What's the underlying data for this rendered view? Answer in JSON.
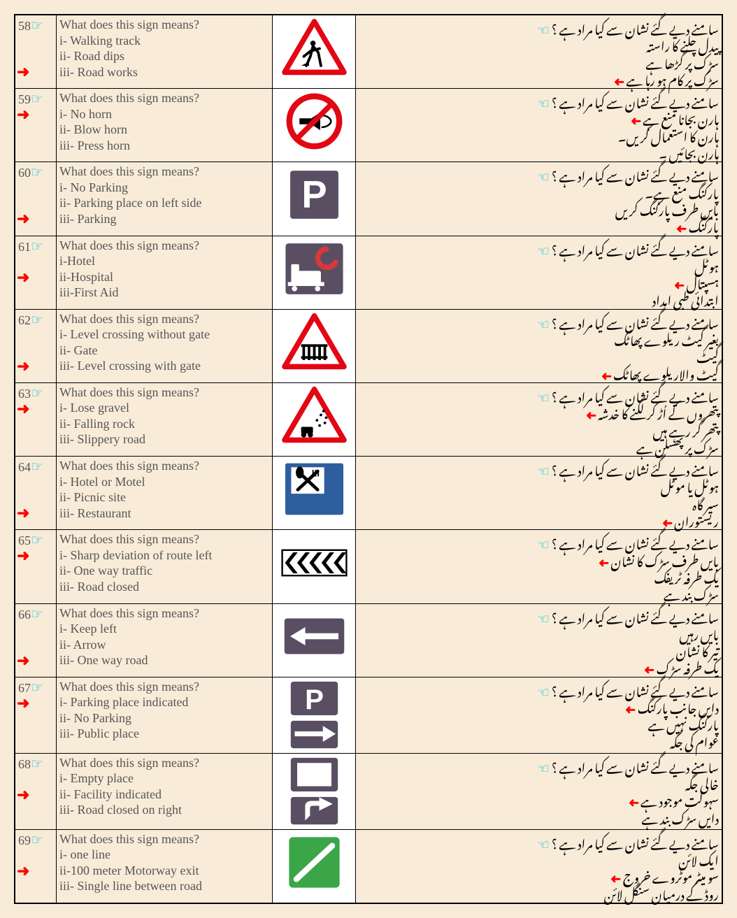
{
  "colors": {
    "bg": "#f8ecd9",
    "border": "#000000",
    "text_eng": "#555555",
    "hand": "#00b8d4",
    "arrow": "#ff0000",
    "sign_red": "#e30613",
    "sign_blue": "#2e5e9e",
    "sign_purple": "#5a4e63",
    "sign_green": "#3aa648",
    "sign_white": "#ffffff",
    "sign_black": "#1a1a1a"
  },
  "font_sizes": {
    "body": 18,
    "hand": 20,
    "arrow": 22
  },
  "rows": [
    {
      "num": "58",
      "question": "What does this sign means?",
      "opts": [
        "i- Walking track",
        "ii- Road dips",
        "iii- Road works"
      ],
      "correct_idx": 2,
      "urdu_q": "سامنے دیے گئے نشان سے کیا مراد ہے ؟",
      "urdu_opts": [
        "پیدل چلنے کا راستہ",
        "سڑک پر گڑھا ہے",
        "سڑک پر کام ہو رہا ہے"
      ],
      "urdu_correct_idx": 2,
      "sign": "roadworks"
    },
    {
      "num": "59",
      "question": "What does this sign means?",
      "opts": [
        "i- No horn",
        "ii- Blow horn",
        "iii- Press horn"
      ],
      "correct_idx": 0,
      "urdu_q": "سامنے دیے گئے نشان سے کیا مراد ہے ؟",
      "urdu_opts": [
        "ہارن بجانا منع ہے",
        "ہارن کا استعمال کریں۔",
        "ہارن بجائیں ۔"
      ],
      "urdu_correct_idx": 0,
      "sign": "nohorn"
    },
    {
      "num": "60",
      "question": "What does this sign means?",
      "opts": [
        "i- No Parking",
        "ii- Parking place on left side",
        "iii- Parking"
      ],
      "correct_idx": 2,
      "urdu_q": "سامنے دیے گئے نشان سے کیا مراد ہے ؟",
      "urdu_opts": [
        "پارکنگ منع ہے۔",
        "بایں طرف پارکنگ کریں",
        "پارکنگ"
      ],
      "urdu_correct_idx": 2,
      "sign": "parking"
    },
    {
      "num": "61",
      "question": "What does this sign means?",
      "opts": [
        "i-Hotel",
        "ii-Hospital",
        "iii-First Aid"
      ],
      "correct_idx": 1,
      "urdu_q": "سامنے دیے گئے نشان سے کیا مراد ہے ؟",
      "urdu_opts": [
        "ہوٹل",
        "ہسپتال",
        "ابتدائی طبی امداد"
      ],
      "urdu_correct_idx": 1,
      "sign": "hospital"
    },
    {
      "num": "62",
      "question": "What does this sign means?",
      "opts": [
        "i- Level crossing without gate",
        "ii- Gate",
        "iii- Level crossing with gate"
      ],
      "correct_idx": 2,
      "urdu_q": "سامنے دیے گئے نشان سے کیا مراد ہے ؟",
      "urdu_opts": [
        "بغیر گیٹ ریلوے پھاٹک",
        "گیٹ",
        "گیٹ والاریلوے پھاٹک"
      ],
      "urdu_correct_idx": 2,
      "sign": "levelcrossing"
    },
    {
      "num": "63",
      "question": "What does this sign means?",
      "opts": [
        "i- Lose gravel",
        "ii- Falling rock",
        "iii- Slippery road"
      ],
      "correct_idx": 0,
      "urdu_q": "سامنے دیے گئے نشان سے کیا مراد ہے ؟",
      "urdu_opts": [
        "پتھروں کے اُڑ کر لگنے کا خدشہ",
        "پتھر گر رہے ہیں",
        "سڑک پر پھسلن ہے"
      ],
      "urdu_correct_idx": 0,
      "sign": "gravel"
    },
    {
      "num": "64",
      "question": "What does this sign means?",
      "opts": [
        "i- Hotel or Motel",
        "ii- Picnic site",
        "iii- Restaurant"
      ],
      "correct_idx": 2,
      "urdu_q": "سامنے دیے گئے نشان سے کیا مراد ہے ؟",
      "urdu_opts": [
        "ہوٹل یا موٹل",
        "سیر گاہ",
        "ریستوران"
      ],
      "urdu_correct_idx": 2,
      "sign": "restaurant"
    },
    {
      "num": "65",
      "question": "What does this sign means?",
      "opts": [
        "i- Sharp deviation of route left",
        "ii- One way traffic",
        "iii- Road closed"
      ],
      "correct_idx": 0,
      "urdu_q": "سامنے دیے گئے نشان سے کیا مراد ہے ؟",
      "urdu_opts": [
        "بایں طرف سڑک کا نشان",
        "یک طرفہ ٹریفک",
        "سڑک بند ہے"
      ],
      "urdu_correct_idx": 0,
      "sign": "chevron"
    },
    {
      "num": "66",
      "question": "What does this sign means?",
      "opts": [
        "i- Keep left",
        "ii- Arrow",
        "iii- One way road"
      ],
      "correct_idx": 2,
      "urdu_q": "سامنے دیے گئے نشان سے کیا مراد ہے ؟",
      "urdu_opts": [
        "بایں رہیں",
        "تیر کا نشان",
        "یک طرفہ سڑک"
      ],
      "urdu_correct_idx": 2,
      "sign": "oneway"
    },
    {
      "num": "67",
      "question": "What does this sign means?",
      "opts": [
        "i- Parking place indicated",
        "ii- No Parking",
        "iii- Public place"
      ],
      "correct_idx": 0,
      "urdu_q": "سامنے دیے گئے نشان سے کیا مراد ہے ؟",
      "urdu_opts": [
        "دایں جانب پارکنگ",
        "پارکنگ نہیں ہے",
        "عوام کی جگہ"
      ],
      "urdu_correct_idx": 0,
      "sign": "parkingright"
    },
    {
      "num": "68",
      "question": "What does this sign means?",
      "opts": [
        "i- Empty place",
        "ii- Facility indicated",
        "iii- Road closed on right"
      ],
      "correct_idx": 1,
      "urdu_q": "سامنے دیے گئے نشان سے کیا مراد ہے ؟",
      "urdu_opts": [
        "خالی جگہ",
        "سہولت موجود ہے",
        "دایں سڑک بند ہے"
      ],
      "urdu_correct_idx": 1,
      "sign": "facility"
    },
    {
      "num": "69",
      "question": "What does this sign means?",
      "opts": [
        "i- one line",
        "ii-100 meter Motorway exit",
        "iii- Single line between road"
      ],
      "correct_idx": 1,
      "urdu_q": "سامنے دیے گئے نشان سے کیا مراد ہے ؟",
      "urdu_opts": [
        "ایک لائن",
        "سو میٹر موٹروے خروج",
        "روڈ کے درمیان سنگل لائن"
      ],
      "urdu_correct_idx": 1,
      "sign": "motorway100"
    }
  ]
}
